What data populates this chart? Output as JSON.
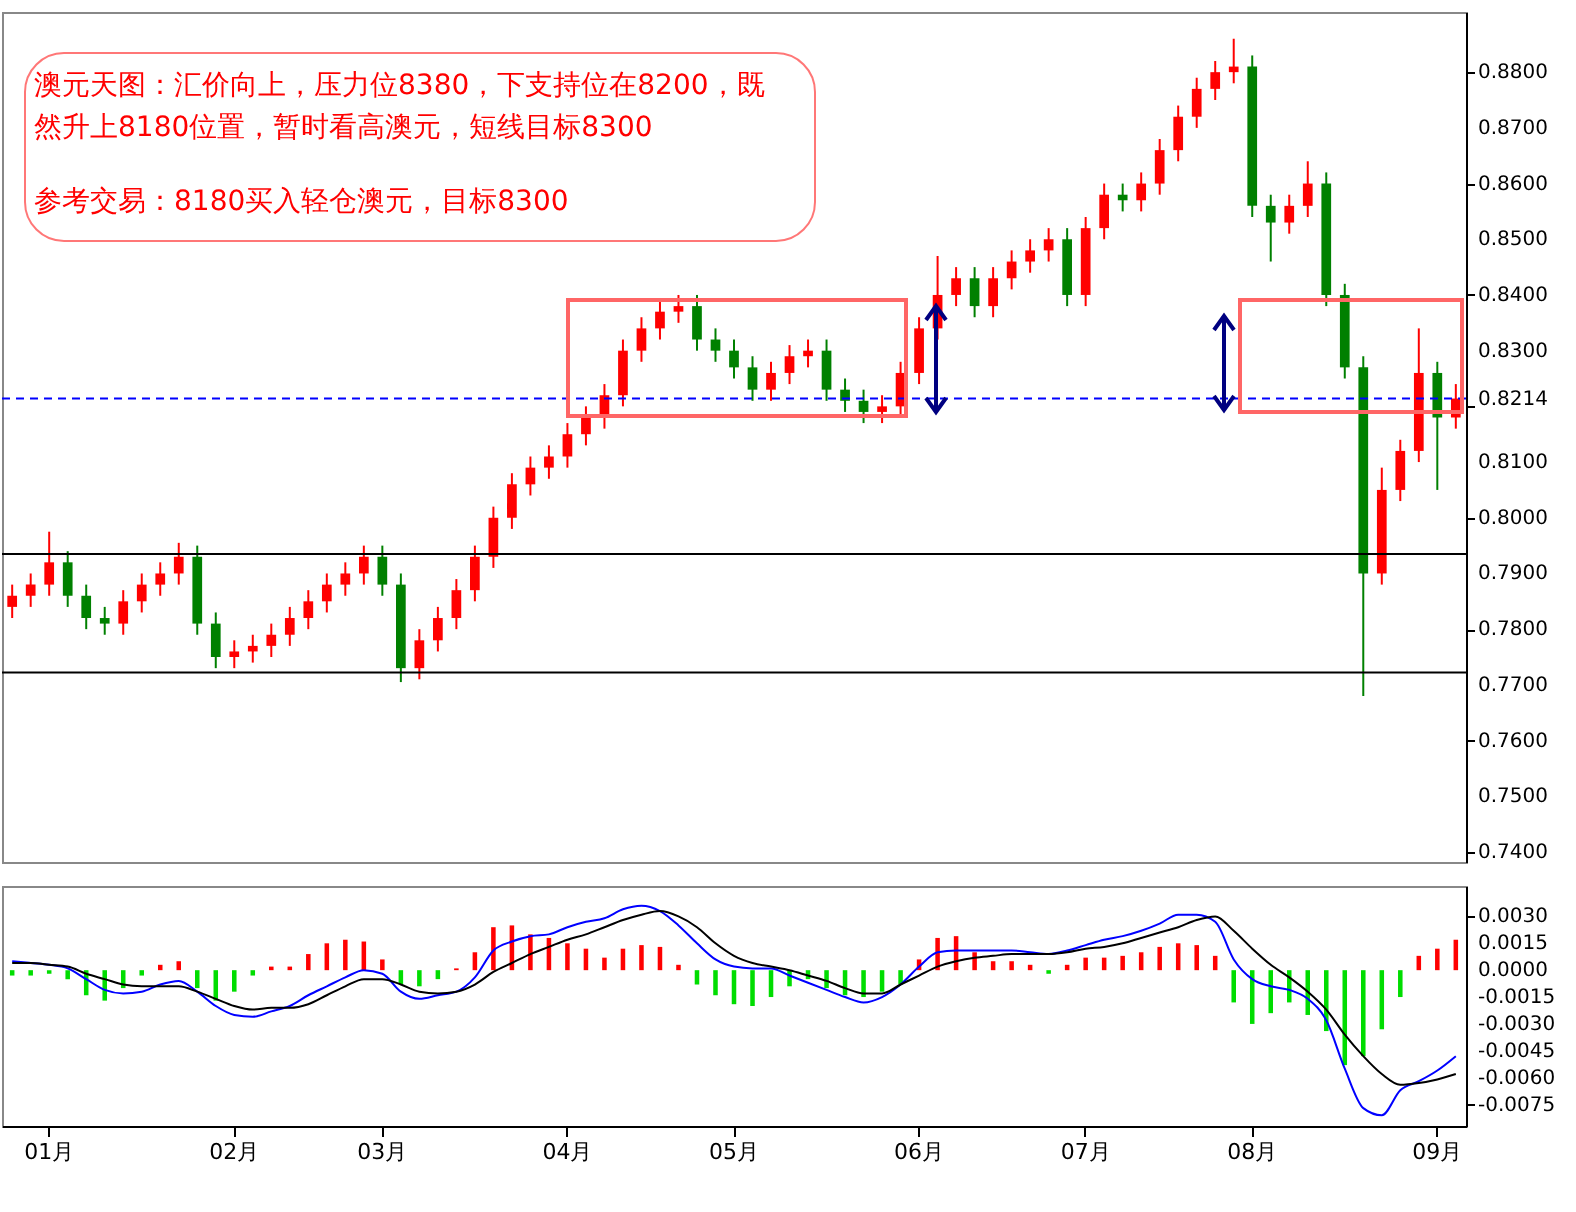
{
  "chart_data": [
    {
      "type": "candlestick",
      "annotations": [
        "澳元天图：汇价向上，压力位8380，下支持位在8200，既然升上8180位置，暂时看高澳元，短线目标8300",
        "参考交易：8180买入轻仓澳元，目标8300"
      ],
      "categories": [
        null,
        null,
        null,
        null,
        null,
        null,
        null,
        null,
        null,
        null,
        null,
        null,
        null,
        null,
        null,
        null,
        null,
        null,
        null,
        null,
        null,
        null,
        null,
        null,
        null,
        null,
        null,
        null,
        null,
        null,
        null,
        null,
        null,
        null,
        null,
        null,
        null,
        null,
        null,
        null,
        null,
        null,
        null,
        null,
        null,
        null,
        null,
        null,
        null,
        null,
        null,
        null,
        null,
        null,
        null,
        null,
        null,
        null,
        null,
        null,
        null,
        null,
        null,
        null,
        null,
        null,
        null,
        null,
        null,
        null,
        null,
        null,
        null,
        null,
        null,
        null,
        null,
        null,
        null
      ],
      "ohlc": [
        [
          0.784,
          0.788,
          0.782,
          0.786
        ],
        [
          0.786,
          0.79,
          0.784,
          0.788
        ],
        [
          0.788,
          0.7975,
          0.786,
          0.792
        ],
        [
          0.792,
          0.794,
          0.784,
          0.786
        ],
        [
          0.786,
          0.788,
          0.78,
          0.782
        ],
        [
          0.782,
          0.784,
          0.779,
          0.781
        ],
        [
          0.781,
          0.787,
          0.779,
          0.785
        ],
        [
          0.785,
          0.79,
          0.783,
          0.788
        ],
        [
          0.788,
          0.792,
          0.786,
          0.79
        ],
        [
          0.79,
          0.7955,
          0.788,
          0.793
        ],
        [
          0.793,
          0.795,
          0.779,
          0.781
        ],
        [
          0.781,
          0.783,
          0.773,
          0.775
        ],
        [
          0.775,
          0.778,
          0.773,
          0.776
        ],
        [
          0.776,
          0.779,
          0.774,
          0.777
        ],
        [
          0.777,
          0.781,
          0.775,
          0.779
        ],
        [
          0.779,
          0.784,
          0.777,
          0.782
        ],
        [
          0.782,
          0.787,
          0.78,
          0.785
        ],
        [
          0.785,
          0.79,
          0.783,
          0.788
        ],
        [
          0.788,
          0.792,
          0.786,
          0.79
        ],
        [
          0.79,
          0.795,
          0.788,
          0.793
        ],
        [
          0.793,
          0.795,
          0.786,
          0.788
        ],
        [
          0.788,
          0.79,
          0.7705,
          0.773
        ],
        [
          0.773,
          0.78,
          0.771,
          0.778
        ],
        [
          0.778,
          0.784,
          0.776,
          0.782
        ],
        [
          0.782,
          0.789,
          0.78,
          0.787
        ],
        [
          0.787,
          0.795,
          0.785,
          0.793
        ],
        [
          0.793,
          0.802,
          0.791,
          0.8
        ],
        [
          0.8,
          0.808,
          0.798,
          0.806
        ],
        [
          0.806,
          0.811,
          0.804,
          0.809
        ],
        [
          0.809,
          0.813,
          0.807,
          0.811
        ],
        [
          0.811,
          0.817,
          0.809,
          0.815
        ],
        [
          0.815,
          0.82,
          0.813,
          0.818
        ],
        [
          0.818,
          0.824,
          0.816,
          0.822
        ],
        [
          0.822,
          0.832,
          0.82,
          0.83
        ],
        [
          0.83,
          0.836,
          0.828,
          0.834
        ],
        [
          0.834,
          0.839,
          0.832,
          0.837
        ],
        [
          0.837,
          0.84,
          0.835,
          0.838
        ],
        [
          0.838,
          0.84,
          0.83,
          0.832
        ],
        [
          0.832,
          0.834,
          0.828,
          0.83
        ],
        [
          0.83,
          0.832,
          0.825,
          0.827
        ],
        [
          0.827,
          0.829,
          0.821,
          0.823
        ],
        [
          0.823,
          0.828,
          0.821,
          0.826
        ],
        [
          0.826,
          0.831,
          0.824,
          0.829
        ],
        [
          0.829,
          0.832,
          0.827,
          0.83
        ],
        [
          0.83,
          0.832,
          0.821,
          0.823
        ],
        [
          0.823,
          0.825,
          0.819,
          0.821
        ],
        [
          0.821,
          0.823,
          0.817,
          0.819
        ],
        [
          0.819,
          0.822,
          0.817,
          0.82
        ],
        [
          0.82,
          0.828,
          0.818,
          0.826
        ],
        [
          0.826,
          0.836,
          0.824,
          0.834
        ],
        [
          0.834,
          0.847,
          0.832,
          0.84
        ],
        [
          0.84,
          0.845,
          0.838,
          0.843
        ],
        [
          0.843,
          0.845,
          0.836,
          0.838
        ],
        [
          0.838,
          0.845,
          0.836,
          0.843
        ],
        [
          0.843,
          0.848,
          0.841,
          0.846
        ],
        [
          0.846,
          0.85,
          0.844,
          0.848
        ],
        [
          0.848,
          0.852,
          0.846,
          0.85
        ],
        [
          0.85,
          0.852,
          0.838,
          0.84
        ],
        [
          0.84,
          0.854,
          0.838,
          0.852
        ],
        [
          0.852,
          0.86,
          0.85,
          0.858
        ],
        [
          0.858,
          0.86,
          0.855,
          0.857
        ],
        [
          0.857,
          0.862,
          0.855,
          0.86
        ],
        [
          0.86,
          0.868,
          0.858,
          0.866
        ],
        [
          0.866,
          0.874,
          0.864,
          0.872
        ],
        [
          0.872,
          0.879,
          0.87,
          0.877
        ],
        [
          0.877,
          0.882,
          0.875,
          0.88
        ],
        [
          0.88,
          0.886,
          0.878,
          0.881
        ],
        [
          0.881,
          0.883,
          0.854,
          0.856
        ],
        [
          0.856,
          0.858,
          0.846,
          0.853
        ],
        [
          0.853,
          0.858,
          0.851,
          0.856
        ],
        [
          0.856,
          0.864,
          0.854,
          0.86
        ],
        [
          0.86,
          0.862,
          0.838,
          0.84
        ],
        [
          0.84,
          0.842,
          0.825,
          0.827
        ],
        [
          0.827,
          0.829,
          0.768,
          0.79
        ],
        [
          0.79,
          0.809,
          0.788,
          0.805
        ],
        [
          0.805,
          0.814,
          0.803,
          0.812
        ],
        [
          0.812,
          0.834,
          0.81,
          0.826
        ],
        [
          0.826,
          0.828,
          0.805,
          0.818
        ],
        [
          0.818,
          0.824,
          0.816,
          0.8214
        ]
      ],
      "colors": [
        "#ff0000",
        "#ff0000",
        "#ff0000",
        "#008000",
        "#008000",
        "#008000",
        "#ff0000",
        "#ff0000",
        "#ff0000",
        "#ff0000",
        "#008000",
        "#008000",
        "#ff0000",
        "#ff0000",
        "#ff0000",
        "#ff0000",
        "#ff0000",
        "#ff0000",
        "#ff0000",
        "#ff0000",
        "#008000",
        "#008000",
        "#ff0000",
        "#ff0000",
        "#ff0000",
        "#ff0000",
        "#ff0000",
        "#ff0000",
        "#ff0000",
        "#ff0000",
        "#ff0000",
        "#ff0000",
        "#ff0000",
        "#ff0000",
        "#ff0000",
        "#ff0000",
        "#ff0000",
        "#008000",
        "#008000",
        "#008000",
        "#008000",
        "#ff0000",
        "#ff0000",
        "#ff0000",
        "#008000",
        "#008000",
        "#008000",
        "#ff0000",
        "#ff0000",
        "#ff0000",
        "#ff0000",
        "#ff0000",
        "#008000",
        "#ff0000",
        "#ff0000",
        "#ff0000",
        "#ff0000",
        "#008000",
        "#ff0000",
        "#ff0000",
        "#008000",
        "#ff0000",
        "#ff0000",
        "#ff0000",
        "#ff0000",
        "#ff0000",
        "#ff0000",
        "#008000",
        "#008000",
        "#ff0000",
        "#ff0000",
        "#008000",
        "#008000",
        "#008000",
        "#ff0000",
        "#ff0000",
        "#ff0000",
        "#008000",
        "#ff0000"
      ],
      "ylim": [
        0.7382,
        0.8908
      ],
      "yticks": [
        {
          "value": 0.74,
          "label": "0.7400"
        },
        {
          "value": 0.75,
          "label": "0.7500"
        },
        {
          "value": 0.76,
          "label": "0.7600"
        },
        {
          "value": 0.77,
          "label": "0.7700"
        },
        {
          "value": 0.78,
          "label": "0.7800"
        },
        {
          "value": 0.79,
          "label": "0.7900"
        },
        {
          "value": 0.8,
          "label": "0.8000"
        },
        {
          "value": 0.81,
          "label": "0.8100"
        },
        {
          "value": 0.82,
          "label": null
        },
        {
          "value": 0.83,
          "label": "0.8300"
        },
        {
          "value": 0.84,
          "label": "0.8400"
        },
        {
          "value": 0.85,
          "label": "0.8500"
        },
        {
          "value": 0.86,
          "label": "0.8600"
        },
        {
          "value": 0.87,
          "label": "0.8700"
        },
        {
          "value": 0.88,
          "label": "0.8800"
        }
      ],
      "ref_lines": [
        {
          "axis": "y",
          "value": 0.7935,
          "color": "#000000",
          "line_style": "solid"
        },
        {
          "axis": "y",
          "value": 0.7722,
          "color": "#000000",
          "line_style": "solid"
        },
        {
          "axis": "y",
          "value": 0.8214,
          "label": "0.8214",
          "color": "#0000ff",
          "line_style": "dashed"
        }
      ],
      "tick_labels": "y"
    },
    {
      "type": "bar",
      "categories": [
        null,
        null,
        "01月",
        null,
        null,
        null,
        null,
        null,
        null,
        null,
        null,
        null,
        "02月",
        null,
        null,
        null,
        null,
        null,
        null,
        null,
        "03月",
        null,
        null,
        null,
        null,
        null,
        null,
        null,
        null,
        null,
        "04月",
        null,
        null,
        null,
        null,
        null,
        null,
        null,
        null,
        "05月",
        null,
        null,
        null,
        null,
        null,
        null,
        null,
        null,
        null,
        "06月",
        null,
        null,
        null,
        null,
        null,
        null,
        null,
        null,
        "07月",
        null,
        null,
        null,
        null,
        null,
        null,
        null,
        null,
        "08月",
        null,
        null,
        null,
        null,
        null,
        null,
        null,
        null,
        null,
        "09月",
        null
      ],
      "series": [
        {
          "color": "#ff0000",
          "values": [
            null,
            null,
            null,
            null,
            null,
            null,
            null,
            null,
            0.0003,
            0.0005,
            null,
            null,
            null,
            null,
            0.0002,
            0.0002,
            0.0009,
            0.0015,
            0.0017,
            0.0016,
            0.0006,
            null,
            null,
            null,
            0.0001,
            0.001,
            0.0024,
            0.0025,
            0.002,
            0.0018,
            0.0015,
            0.0012,
            0.0007,
            0.0012,
            0.0014,
            0.0013,
            0.0003,
            null,
            null,
            null,
            null,
            null,
            null,
            null,
            null,
            null,
            null,
            null,
            null,
            0.0006,
            0.0018,
            0.0019,
            0.001,
            0.0005,
            0.0005,
            0.0003,
            null,
            0.0003,
            0.0007,
            0.0007,
            0.0008,
            0.001,
            0.0013,
            0.0015,
            0.0014,
            0.0008,
            null,
            null,
            null,
            null,
            null,
            null,
            null,
            null,
            null,
            null,
            0.0008,
            0.0012,
            0.0017
          ]
        },
        {
          "color": "#00dd00",
          "values": [
            -0.0003,
            -0.0003,
            -0.0002,
            -0.0005,
            -0.0014,
            -0.0017,
            -0.001,
            -0.0003,
            null,
            null,
            -0.001,
            -0.0017,
            -0.0012,
            -0.0003,
            null,
            null,
            null,
            null,
            null,
            null,
            null,
            -0.0008,
            -0.0009,
            -0.0005,
            null,
            null,
            null,
            null,
            null,
            null,
            null,
            null,
            null,
            null,
            null,
            null,
            null,
            -0.0008,
            -0.0014,
            -0.0019,
            -0.002,
            -0.0015,
            -0.0009,
            -0.0005,
            -0.001,
            -0.0014,
            -0.0015,
            -0.0012,
            -0.0008,
            null,
            null,
            null,
            null,
            null,
            null,
            null,
            -0.0002,
            null,
            null,
            null,
            null,
            null,
            null,
            null,
            null,
            null,
            -0.0018,
            -0.003,
            -0.0024,
            -0.0018,
            -0.0025,
            -0.0034,
            -0.0053,
            -0.0048,
            -0.0033,
            -0.0015,
            null,
            null,
            null
          ]
        },
        {
          "type": "line",
          "color": "#0000ff",
          "values": [
            0.0005,
            0.0004,
            0.0003,
            0.0001,
            -0.0005,
            -0.0011,
            -0.0013,
            -0.0012,
            -0.0008,
            -0.0006,
            -0.0012,
            -0.002,
            -0.0025,
            -0.0026,
            -0.0023,
            -0.002,
            -0.0014,
            -0.0009,
            -0.0004,
            0,
            -0.0002,
            -0.0012,
            -0.0016,
            -0.0014,
            -0.0012,
            -0.0004,
            0.0011,
            0.0016,
            0.0019,
            0.002,
            0.0024,
            0.0027,
            0.0029,
            0.0034,
            0.0036,
            0.0033,
            0.0025,
            0.0015,
            0.0006,
            0.0002,
            0.0001,
            0.0001,
            -0.0003,
            -0.0007,
            -0.0011,
            -0.0015,
            -0.0018,
            -0.0015,
            -0.0008,
            0.0002,
            0.001,
            0.0011,
            0.0011,
            0.0011,
            0.0011,
            0.001,
            0.0009,
            0.0011,
            0.0014,
            0.0017,
            0.0019,
            0.0022,
            0.0026,
            0.0031,
            0.0031,
            0.0027,
            0.0006,
            -0.0005,
            -0.0009,
            -0.0011,
            -0.0016,
            -0.0028,
            -0.0055,
            -0.0077,
            -0.0081,
            -0.0067,
            -0.0062,
            -0.0056,
            -0.0048
          ]
        },
        {
          "type": "line",
          "color": "#000000",
          "values": [
            0.0004,
            0.0004,
            0.0003,
            0.0002,
            -0.0002,
            -0.0005,
            -0.0008,
            -0.0009,
            -0.0009,
            -0.0009,
            -0.0012,
            -0.0016,
            -0.002,
            -0.0022,
            -0.0021,
            -0.0021,
            -0.0019,
            -0.0014,
            -0.0009,
            -0.0005,
            -0.0005,
            -0.0008,
            -0.0012,
            -0.0013,
            -0.0012,
            -0.0008,
            -0.0001,
            0.0004,
            0.0009,
            0.0013,
            0.0017,
            0.002,
            0.0024,
            0.0028,
            0.0031,
            0.0033,
            0.003,
            0.0024,
            0.0015,
            0.0008,
            0.0004,
            0.0002,
            0,
            -0.0003,
            -0.0006,
            -0.001,
            -0.0013,
            -0.0013,
            -0.0008,
            -0.0003,
            0.0002,
            0.0005,
            0.0007,
            0.0008,
            0.0009,
            0.0009,
            0.0009,
            0.001,
            0.0012,
            0.0013,
            0.0015,
            0.0018,
            0.0021,
            0.0024,
            0.0028,
            0.003,
            0.0022,
            0.0012,
            0.0003,
            -0.0004,
            -0.0012,
            -0.0022,
            -0.0036,
            -0.0048,
            -0.0058,
            -0.0064,
            -0.0063,
            -0.0061,
            -0.0058
          ]
        }
      ],
      "ylim": [
        -0.0087,
        0.0047
      ],
      "yticks": [
        {
          "value": 0.003,
          "label": "0.0030"
        },
        {
          "value": 0.0015,
          "label": "0.0015"
        },
        {
          "value": 0,
          "label": "0.0000"
        },
        {
          "value": -0.0015,
          "label": "-0.0015"
        },
        {
          "value": -0.003,
          "label": "-0.0030"
        },
        {
          "value": -0.0045,
          "label": "-0.0045"
        },
        {
          "value": -0.006,
          "label": "-0.0060"
        },
        {
          "value": -0.0075,
          "label": "-0.0075"
        }
      ]
    }
  ]
}
